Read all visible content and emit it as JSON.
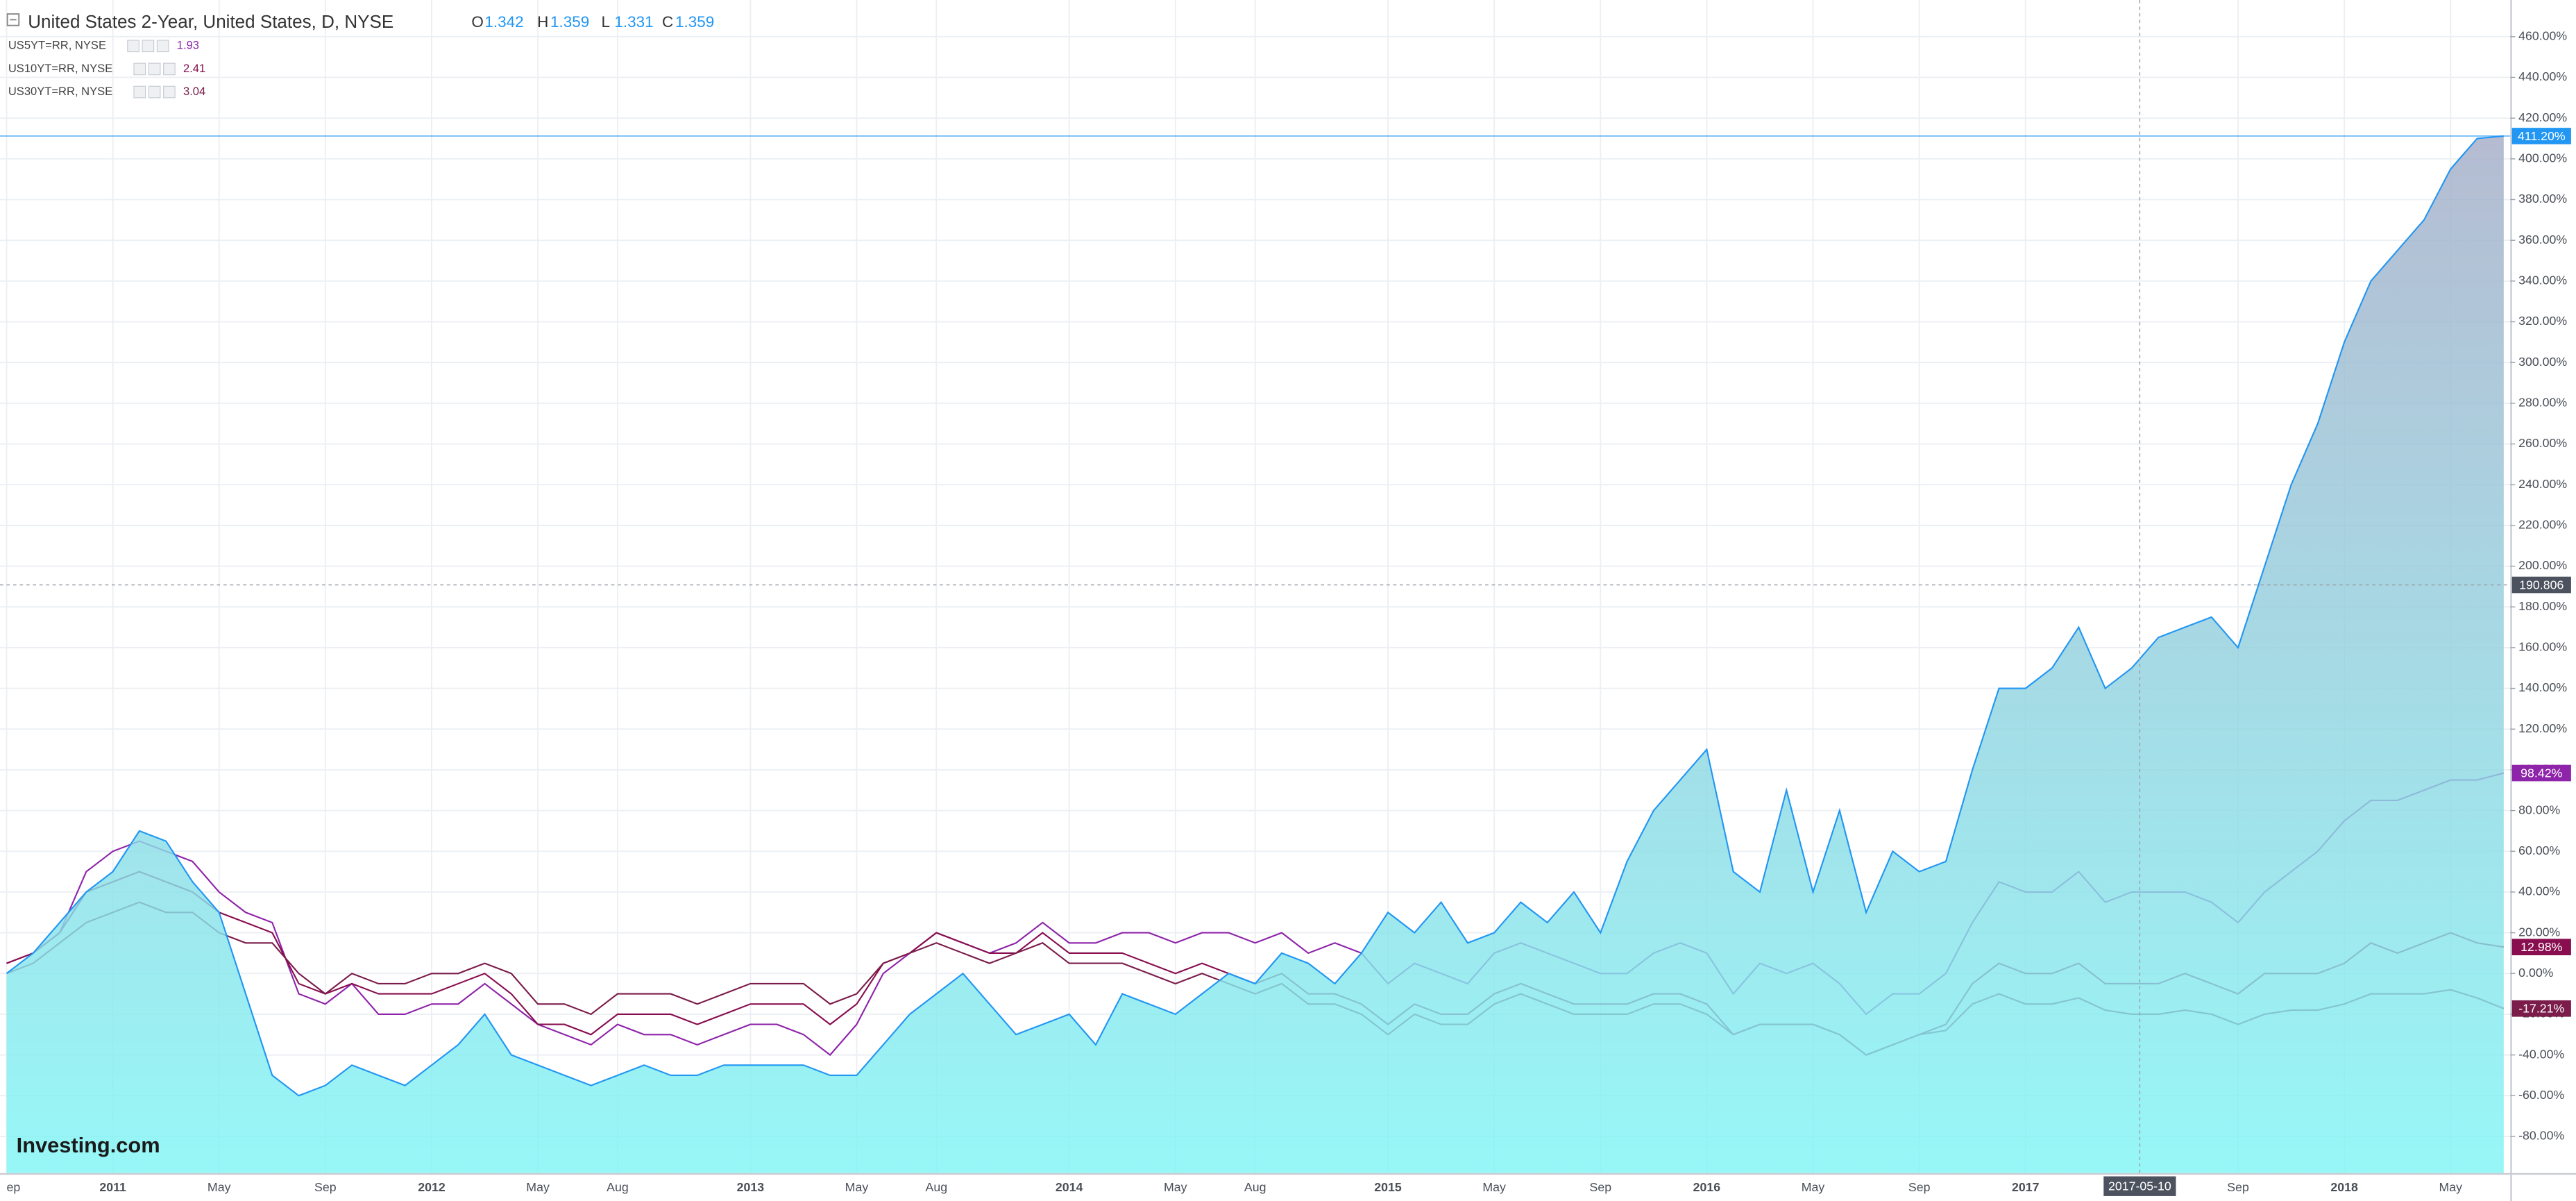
{
  "chart_data": {
    "type": "area",
    "grid": true,
    "x": [
      "2010-09",
      "2010-10",
      "2010-11",
      "2010-12",
      "2011-01",
      "2011-02",
      "2011-03",
      "2011-04",
      "2011-05",
      "2011-06",
      "2011-07",
      "2011-08",
      "2011-09",
      "2011-10",
      "2011-11",
      "2011-12",
      "2012-01",
      "2012-02",
      "2012-03",
      "2012-04",
      "2012-05",
      "2012-06",
      "2012-07",
      "2012-08",
      "2012-09",
      "2012-10",
      "2012-11",
      "2012-12",
      "2013-01",
      "2013-02",
      "2013-03",
      "2013-04",
      "2013-05",
      "2013-06",
      "2013-07",
      "2013-08",
      "2013-09",
      "2013-10",
      "2013-11",
      "2013-12",
      "2014-01",
      "2014-02",
      "2014-03",
      "2014-04",
      "2014-05",
      "2014-06",
      "2014-07",
      "2014-08",
      "2014-09",
      "2014-10",
      "2014-11",
      "2014-12",
      "2015-01",
      "2015-02",
      "2015-03",
      "2015-04",
      "2015-05",
      "2015-06",
      "2015-07",
      "2015-08",
      "2015-09",
      "2015-10",
      "2015-11",
      "2015-12",
      "2016-01",
      "2016-02",
      "2016-03",
      "2016-04",
      "2016-05",
      "2016-06",
      "2016-07",
      "2016-08",
      "2016-09",
      "2016-10",
      "2016-11",
      "2016-12",
      "2017-01",
      "2017-02",
      "2017-03",
      "2017-04",
      "2017-05",
      "2017-06",
      "2017-07",
      "2017-08",
      "2017-09",
      "2017-10",
      "2017-11",
      "2017-12",
      "2018-01",
      "2018-02",
      "2018-03",
      "2018-04",
      "2018-05",
      "2018-06",
      "2018-07"
    ],
    "xticks": [
      {
        "value": "2010-09",
        "label": "ep"
      },
      {
        "value": "2011-01",
        "label": "2011"
      },
      {
        "value": "2011-05",
        "label": "May"
      },
      {
        "value": "2011-09",
        "label": "Sep"
      },
      {
        "value": "2012-01",
        "label": "2012"
      },
      {
        "value": "2012-05",
        "label": "May"
      },
      {
        "value": "2012-08",
        "label": "Aug"
      },
      {
        "value": "2013-01",
        "label": "2013"
      },
      {
        "value": "2013-05",
        "label": "May"
      },
      {
        "value": "2013-08",
        "label": "Aug"
      },
      {
        "value": "2014-01",
        "label": "2014"
      },
      {
        "value": "2014-05",
        "label": "May"
      },
      {
        "value": "2014-08",
        "label": "Aug"
      },
      {
        "value": "2015-01",
        "label": "2015"
      },
      {
        "value": "2015-05",
        "label": "May"
      },
      {
        "value": "2015-09",
        "label": "Sep"
      },
      {
        "value": "2016-01",
        "label": "2016"
      },
      {
        "value": "2016-05",
        "label": "May"
      },
      {
        "value": "2016-09",
        "label": "Sep"
      },
      {
        "value": "2017-01",
        "label": "2017"
      },
      {
        "value": "2017-09",
        "label": "Sep"
      },
      {
        "value": "2018-01",
        "label": "2018"
      },
      {
        "value": "2018-05",
        "label": "May"
      }
    ],
    "ylim": [
      -98,
      478
    ],
    "yticks": [
      {
        "value": -80,
        "label": "-80.00%"
      },
      {
        "value": -60,
        "label": "-60.00%"
      },
      {
        "value": -40,
        "label": "-40.00%"
      },
      {
        "value": -20,
        "label": "-20.00%"
      },
      {
        "value": 0,
        "label": "0.00%"
      },
      {
        "value": 20,
        "label": "20.00%"
      },
      {
        "value": 40,
        "label": "40.00%"
      },
      {
        "value": 60,
        "label": "60.00%"
      },
      {
        "value": 80,
        "label": "80.00%"
      },
      {
        "value": 100,
        "label": "100.00%"
      },
      {
        "value": 120,
        "label": "120.00%"
      },
      {
        "value": 140,
        "label": "140.00%"
      },
      {
        "value": 160,
        "label": "160.00%"
      },
      {
        "value": 180,
        "label": "180.00%"
      },
      {
        "value": 200,
        "label": "200.00%"
      },
      {
        "value": 220,
        "label": "220.00%"
      },
      {
        "value": 240,
        "label": "240.00%"
      },
      {
        "value": 260,
        "label": "260.00%"
      },
      {
        "value": 280,
        "label": "280.00%"
      },
      {
        "value": 300,
        "label": "300.00%"
      },
      {
        "value": 320,
        "label": "320.00%"
      },
      {
        "value": 340,
        "label": "340.00%"
      },
      {
        "value": 360,
        "label": "360.00%"
      },
      {
        "value": 380,
        "label": "380.00%"
      },
      {
        "value": 400,
        "label": "400.00%"
      },
      {
        "value": 420,
        "label": "420.00%"
      },
      {
        "value": 440,
        "label": "440.00%"
      },
      {
        "value": 460,
        "label": "460.00%"
      }
    ],
    "crosshair": {
      "x": "2017-05-10",
      "y": 190.806
    },
    "logo": "Investing.com",
    "series": [
      {
        "name": "United States 2-Year, United States, D, NYSE",
        "type": "area",
        "color": "#2196f3",
        "fill_colors": [
          "#a5adc8",
          "#80f5f5"
        ],
        "ohlc": [
          {
            "label": "O",
            "value": 1.342
          },
          {
            "label": "H",
            "value": 1.359
          },
          {
            "label": "L",
            "value": 1.331
          },
          {
            "label": "C",
            "value": 1.359
          }
        ],
        "values": [
          0,
          10,
          25,
          40,
          50,
          70,
          65,
          45,
          30,
          -10,
          -50,
          -60,
          -55,
          -45,
          -50,
          -55,
          -45,
          -35,
          -20,
          -40,
          -45,
          -50,
          -55,
          -50,
          -45,
          -50,
          -50,
          -45,
          -45,
          -45,
          -45,
          -50,
          -50,
          -35,
          -20,
          -10,
          0,
          -15,
          -30,
          -25,
          -20,
          -35,
          -10,
          -15,
          -20,
          -10,
          0,
          -5,
          10,
          5,
          -5,
          10,
          30,
          20,
          35,
          15,
          20,
          35,
          25,
          40,
          20,
          55,
          80,
          95,
          110,
          50,
          40,
          90,
          40,
          80,
          30,
          60,
          50,
          55,
          100,
          140,
          140,
          150,
          170,
          140,
          150,
          165,
          170,
          175,
          160,
          200,
          240,
          270,
          310,
          340,
          355,
          370,
          395,
          410,
          411.2
        ],
        "value_labels": [
          null,
          null,
          null,
          null,
          null,
          null,
          null,
          null,
          null,
          null,
          null,
          null,
          null,
          null,
          null,
          null,
          null,
          null,
          null,
          null,
          null,
          null,
          null,
          null,
          null,
          null,
          null,
          null,
          null,
          null,
          null,
          null,
          null,
          null,
          null,
          null,
          null,
          null,
          null,
          null,
          null,
          null,
          null,
          null,
          null,
          null,
          null,
          null,
          null,
          null,
          null,
          null,
          null,
          null,
          null,
          null,
          null,
          null,
          null,
          null,
          null,
          null,
          null,
          null,
          null,
          null,
          null,
          null,
          null,
          null,
          null,
          null,
          null,
          null,
          null,
          null,
          null,
          null,
          null,
          null,
          null,
          null,
          null,
          null,
          null,
          null,
          null,
          null,
          null,
          null,
          null,
          null,
          null,
          null,
          "411.20%"
        ]
      },
      {
        "name": "US5YT=RR, NYSE",
        "type": "line",
        "color": "#8e24aa",
        "quote": 1.93,
        "values": [
          5,
          10,
          20,
          50,
          60,
          65,
          60,
          55,
          40,
          30,
          25,
          -10,
          -15,
          -5,
          -20,
          -20,
          -15,
          -15,
          -5,
          -15,
          -25,
          -30,
          -35,
          -25,
          -30,
          -30,
          -35,
          -30,
          -25,
          -25,
          -30,
          -40,
          -25,
          0,
          10,
          20,
          15,
          10,
          15,
          25,
          15,
          15,
          20,
          20,
          15,
          20,
          20,
          15,
          20,
          10,
          15,
          10,
          -5,
          5,
          0,
          -5,
          10,
          15,
          10,
          5,
          0,
          0,
          10,
          15,
          10,
          -10,
          5,
          0,
          5,
          -5,
          -20,
          -10,
          -10,
          0,
          25,
          45,
          40,
          40,
          50,
          35,
          40,
          40,
          40,
          35,
          25,
          40,
          50,
          60,
          75,
          85,
          85,
          90,
          95,
          95,
          98.42
        ],
        "value_labels": [
          null,
          null,
          null,
          null,
          null,
          null,
          null,
          null,
          null,
          null,
          null,
          null,
          null,
          null,
          null,
          null,
          null,
          null,
          null,
          null,
          null,
          null,
          null,
          null,
          null,
          null,
          null,
          null,
          null,
          null,
          null,
          null,
          null,
          null,
          null,
          null,
          null,
          null,
          null,
          null,
          null,
          null,
          null,
          null,
          null,
          null,
          null,
          null,
          null,
          null,
          null,
          null,
          null,
          null,
          null,
          null,
          null,
          null,
          null,
          null,
          null,
          null,
          null,
          null,
          null,
          null,
          null,
          null,
          null,
          null,
          null,
          null,
          null,
          null,
          null,
          null,
          null,
          null,
          null,
          null,
          null,
          null,
          null,
          null,
          null,
          null,
          null,
          null,
          null,
          null,
          null,
          null,
          null,
          null,
          "98.42%"
        ]
      },
      {
        "name": "US10YT=RR, NYSE",
        "type": "line",
        "color": "#880e4f",
        "quote": 2.41,
        "values": [
          5,
          10,
          20,
          40,
          45,
          50,
          45,
          40,
          30,
          25,
          20,
          -5,
          -10,
          -5,
          -10,
          -10,
          -10,
          -5,
          0,
          -10,
          -25,
          -25,
          -30,
          -20,
          -20,
          -20,
          -25,
          -20,
          -15,
          -15,
          -15,
          -25,
          -15,
          5,
          10,
          20,
          15,
          10,
          10,
          20,
          10,
          10,
          10,
          5,
          0,
          5,
          0,
          -5,
          0,
          -10,
          -10,
          -15,
          -25,
          -15,
          -20,
          -20,
          -10,
          -5,
          -10,
          -15,
          -15,
          -15,
          -10,
          -10,
          -15,
          -30,
          -25,
          -25,
          -25,
          -30,
          -40,
          -35,
          -30,
          -25,
          -5,
          5,
          0,
          0,
          5,
          -5,
          -5,
          -5,
          0,
          -5,
          -10,
          0,
          0,
          0,
          5,
          15,
          10,
          15,
          20,
          15,
          12.98
        ],
        "value_labels": [
          null,
          null,
          null,
          null,
          null,
          null,
          null,
          null,
          null,
          null,
          null,
          null,
          null,
          null,
          null,
          null,
          null,
          null,
          null,
          null,
          null,
          null,
          null,
          null,
          null,
          null,
          null,
          null,
          null,
          null,
          null,
          null,
          null,
          null,
          null,
          null,
          null,
          null,
          null,
          null,
          null,
          null,
          null,
          null,
          null,
          null,
          null,
          null,
          null,
          null,
          null,
          null,
          null,
          null,
          null,
          null,
          null,
          null,
          null,
          null,
          null,
          null,
          null,
          null,
          null,
          null,
          null,
          null,
          null,
          null,
          null,
          null,
          null,
          null,
          null,
          null,
          null,
          null,
          null,
          null,
          null,
          null,
          null,
          null,
          null,
          null,
          null,
          null,
          null,
          null,
          null,
          null,
          null,
          null,
          "12.98%"
        ]
      },
      {
        "name": "US30YT=RR, NYSE",
        "type": "line",
        "color": "#7b1c4a",
        "quote": 3.04,
        "values": [
          0,
          5,
          15,
          25,
          30,
          35,
          30,
          30,
          20,
          15,
          15,
          0,
          -10,
          0,
          -5,
          -5,
          0,
          0,
          5,
          0,
          -15,
          -15,
          -20,
          -10,
          -10,
          -10,
          -15,
          -10,
          -5,
          -5,
          -5,
          -15,
          -10,
          5,
          10,
          15,
          10,
          5,
          10,
          15,
          5,
          5,
          5,
          0,
          -5,
          0,
          -5,
          -10,
          -5,
          -15,
          -15,
          -20,
          -30,
          -20,
          -25,
          -25,
          -15,
          -10,
          -15,
          -20,
          -20,
          -20,
          -15,
          -15,
          -20,
          -30,
          -25,
          -25,
          -25,
          -30,
          -40,
          -35,
          -30,
          -28,
          -15,
          -10,
          -15,
          -15,
          -12,
          -18,
          -20,
          -20,
          -18,
          -20,
          -25,
          -20,
          -18,
          -18,
          -15,
          -10,
          -10,
          -10,
          -8,
          -12,
          -17.21
        ],
        "value_labels": [
          null,
          null,
          null,
          null,
          null,
          null,
          null,
          null,
          null,
          null,
          null,
          null,
          null,
          null,
          null,
          null,
          null,
          null,
          null,
          null,
          null,
          null,
          null,
          null,
          null,
          null,
          null,
          null,
          null,
          null,
          null,
          null,
          null,
          null,
          null,
          null,
          null,
          null,
          null,
          null,
          null,
          null,
          null,
          null,
          null,
          null,
          null,
          null,
          null,
          null,
          null,
          null,
          null,
          null,
          null,
          null,
          null,
          null,
          null,
          null,
          null,
          null,
          null,
          null,
          null,
          null,
          null,
          null,
          null,
          null,
          null,
          null,
          null,
          null,
          null,
          null,
          null,
          null,
          null,
          null,
          null,
          null,
          null,
          null,
          null,
          null,
          null,
          null,
          null,
          null,
          null,
          null,
          null,
          null,
          "-17.21%"
        ]
      }
    ]
  }
}
